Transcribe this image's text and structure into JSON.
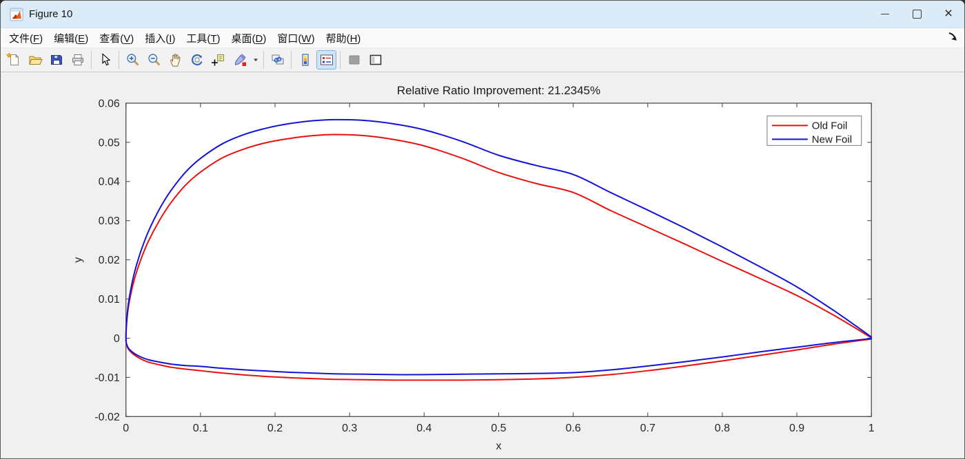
{
  "titlebar": {
    "title": "Figure 10"
  },
  "menubar": {
    "items": [
      {
        "name": "file",
        "label": "文件",
        "mnemonic": "F"
      },
      {
        "name": "edit",
        "label": "编辑",
        "mnemonic": "E"
      },
      {
        "name": "view",
        "label": "查看",
        "mnemonic": "V"
      },
      {
        "name": "insert",
        "label": "插入",
        "mnemonic": "I"
      },
      {
        "name": "tools",
        "label": "工具",
        "mnemonic": "T"
      },
      {
        "name": "desktop",
        "label": "桌面",
        "mnemonic": "D"
      },
      {
        "name": "window",
        "label": "窗口",
        "mnemonic": "W"
      },
      {
        "name": "help",
        "label": "帮助",
        "mnemonic": "H"
      }
    ]
  },
  "toolbar": {
    "buttons": [
      {
        "icon": "new-figure-icon"
      },
      {
        "icon": "open-file-icon"
      },
      {
        "icon": "save-figure-icon"
      },
      {
        "icon": "print-figure-icon"
      },
      {
        "separator": true
      },
      {
        "icon": "edit-plot-icon"
      },
      {
        "separator": true
      },
      {
        "icon": "zoom-in-icon"
      },
      {
        "icon": "zoom-out-icon"
      },
      {
        "icon": "pan-icon"
      },
      {
        "icon": "rotate-3d-icon"
      },
      {
        "icon": "data-cursor-icon"
      },
      {
        "icon": "brush-icon"
      },
      {
        "icon": "brush-dropdown-icon",
        "caret": true
      },
      {
        "separator": true
      },
      {
        "icon": "link-plot-icon"
      },
      {
        "separator": true
      },
      {
        "icon": "insert-colorbar-icon"
      },
      {
        "icon": "insert-legend-icon",
        "selected": true
      },
      {
        "separator": true
      },
      {
        "icon": "hide-plot-tools-icon"
      },
      {
        "icon": "dock-figure-icon"
      }
    ]
  },
  "colors": {
    "figure_bg": "#f0f0f0",
    "titlebar_bg": "#dcebf8",
    "selected_button_bg": "#cfe4f8",
    "old_foil": "#e8100c",
    "new_foil": "#1212d8"
  },
  "chart_data": {
    "type": "line",
    "title": "Relative Ratio Improvement: 21.2345%",
    "xlabel": "x",
    "ylabel": "y",
    "xlim": [
      0,
      1
    ],
    "ylim": [
      -0.02,
      0.06
    ],
    "xticks": [
      0,
      0.1,
      0.2,
      0.3,
      0.4,
      0.5,
      0.6,
      0.7,
      0.8,
      0.9,
      1
    ],
    "xtick_labels": [
      "0",
      "0.1",
      "0.2",
      "0.3",
      "0.4",
      "0.5",
      "0.6",
      "0.7",
      "0.8",
      "0.9",
      "1"
    ],
    "yticks": [
      -0.02,
      -0.01,
      0,
      0.01,
      0.02,
      0.03,
      0.04,
      0.05,
      0.06
    ],
    "ytick_labels": [
      "-0.02",
      "-0.01",
      "0",
      "0.01",
      "0.02",
      "0.03",
      "0.04",
      "0.05",
      "0.06"
    ],
    "grid": false,
    "legend": {
      "position": "top-right",
      "entries": [
        "Old Foil",
        "New Foil"
      ]
    },
    "series": [
      {
        "name": "Old Foil",
        "color": "#e8100c",
        "points": [
          [
            1,
            0.0001
          ],
          [
            0.95,
            0.0058
          ],
          [
            0.9,
            0.0109
          ],
          [
            0.85,
            0.0153
          ],
          [
            0.8,
            0.0196
          ],
          [
            0.75,
            0.024
          ],
          [
            0.7,
            0.0283
          ],
          [
            0.65,
            0.0326
          ],
          [
            0.6,
            0.0372
          ],
          [
            0.55,
            0.0395
          ],
          [
            0.5,
            0.0423
          ],
          [
            0.45,
            0.046
          ],
          [
            0.4,
            0.0491
          ],
          [
            0.36,
            0.0507
          ],
          [
            0.32,
            0.0517
          ],
          [
            0.28,
            0.052
          ],
          [
            0.25,
            0.0517
          ],
          [
            0.22,
            0.051
          ],
          [
            0.19,
            0.05
          ],
          [
            0.16,
            0.0484
          ],
          [
            0.13,
            0.0461
          ],
          [
            0.1,
            0.0424
          ],
          [
            0.08,
            0.0391
          ],
          [
            0.06,
            0.0345
          ],
          [
            0.045,
            0.0301
          ],
          [
            0.03,
            0.0247
          ],
          [
            0.02,
            0.0201
          ],
          [
            0.012,
            0.0155
          ],
          [
            0.006,
            0.0108
          ],
          [
            0.002,
            0.0061
          ],
          [
            0,
            0
          ],
          [
            0.002,
            -0.0023
          ],
          [
            0.006,
            -0.0034
          ],
          [
            0.012,
            -0.0044
          ],
          [
            0.02,
            -0.0053
          ],
          [
            0.03,
            -0.0061
          ],
          [
            0.045,
            -0.0068
          ],
          [
            0.06,
            -0.0074
          ],
          [
            0.08,
            -0.0079
          ],
          [
            0.1,
            -0.0083
          ],
          [
            0.13,
            -0.0089
          ],
          [
            0.16,
            -0.0094
          ],
          [
            0.19,
            -0.0098
          ],
          [
            0.22,
            -0.0101
          ],
          [
            0.25,
            -0.0103
          ],
          [
            0.28,
            -0.0105
          ],
          [
            0.32,
            -0.0106
          ],
          [
            0.36,
            -0.0107
          ],
          [
            0.4,
            -0.0107
          ],
          [
            0.45,
            -0.0107
          ],
          [
            0.5,
            -0.0106
          ],
          [
            0.55,
            -0.0104
          ],
          [
            0.6,
            -0.01
          ],
          [
            0.65,
            -0.0093
          ],
          [
            0.7,
            -0.0083
          ],
          [
            0.75,
            -0.0071
          ],
          [
            0.8,
            -0.0058
          ],
          [
            0.85,
            -0.0044
          ],
          [
            0.9,
            -0.003
          ],
          [
            0.95,
            -0.0015
          ],
          [
            1,
            -0.0002
          ]
        ]
      },
      {
        "name": "New Foil",
        "color": "#1212d8",
        "points": [
          [
            1,
            0.0003
          ],
          [
            0.95,
            0.007
          ],
          [
            0.9,
            0.0131
          ],
          [
            0.85,
            0.0183
          ],
          [
            0.8,
            0.0233
          ],
          [
            0.75,
            0.0281
          ],
          [
            0.7,
            0.0327
          ],
          [
            0.65,
            0.0372
          ],
          [
            0.6,
            0.0418
          ],
          [
            0.55,
            0.0441
          ],
          [
            0.5,
            0.0467
          ],
          [
            0.45,
            0.0503
          ],
          [
            0.4,
            0.0532
          ],
          [
            0.36,
            0.0547
          ],
          [
            0.32,
            0.0556
          ],
          [
            0.28,
            0.0558
          ],
          [
            0.25,
            0.0555
          ],
          [
            0.22,
            0.0548
          ],
          [
            0.19,
            0.0537
          ],
          [
            0.16,
            0.0521
          ],
          [
            0.13,
            0.0497
          ],
          [
            0.1,
            0.0459
          ],
          [
            0.08,
            0.0424
          ],
          [
            0.06,
            0.0376
          ],
          [
            0.045,
            0.033
          ],
          [
            0.03,
            0.0272
          ],
          [
            0.02,
            0.0222
          ],
          [
            0.012,
            0.0172
          ],
          [
            0.006,
            0.012
          ],
          [
            0.002,
            0.0068
          ],
          [
            0,
            0
          ],
          [
            0.002,
            -0.0021
          ],
          [
            0.006,
            -0.0031
          ],
          [
            0.012,
            -0.004
          ],
          [
            0.02,
            -0.0048
          ],
          [
            0.03,
            -0.0055
          ],
          [
            0.045,
            -0.0061
          ],
          [
            0.06,
            -0.0066
          ],
          [
            0.08,
            -0.007
          ],
          [
            0.1,
            -0.0072
          ],
          [
            0.13,
            -0.0077
          ],
          [
            0.16,
            -0.0081
          ],
          [
            0.19,
            -0.0084
          ],
          [
            0.22,
            -0.0087
          ],
          [
            0.25,
            -0.0089
          ],
          [
            0.28,
            -0.0091
          ],
          [
            0.32,
            -0.0092
          ],
          [
            0.36,
            -0.0093
          ],
          [
            0.4,
            -0.0093
          ],
          [
            0.45,
            -0.0092
          ],
          [
            0.5,
            -0.0091
          ],
          [
            0.55,
            -0.009
          ],
          [
            0.6,
            -0.0088
          ],
          [
            0.65,
            -0.0081
          ],
          [
            0.7,
            -0.0071
          ],
          [
            0.75,
            -0.006
          ],
          [
            0.8,
            -0.0048
          ],
          [
            0.85,
            -0.0035
          ],
          [
            0.9,
            -0.0023
          ],
          [
            0.95,
            -0.0011
          ],
          [
            1,
            -0.0001
          ]
        ]
      }
    ]
  }
}
